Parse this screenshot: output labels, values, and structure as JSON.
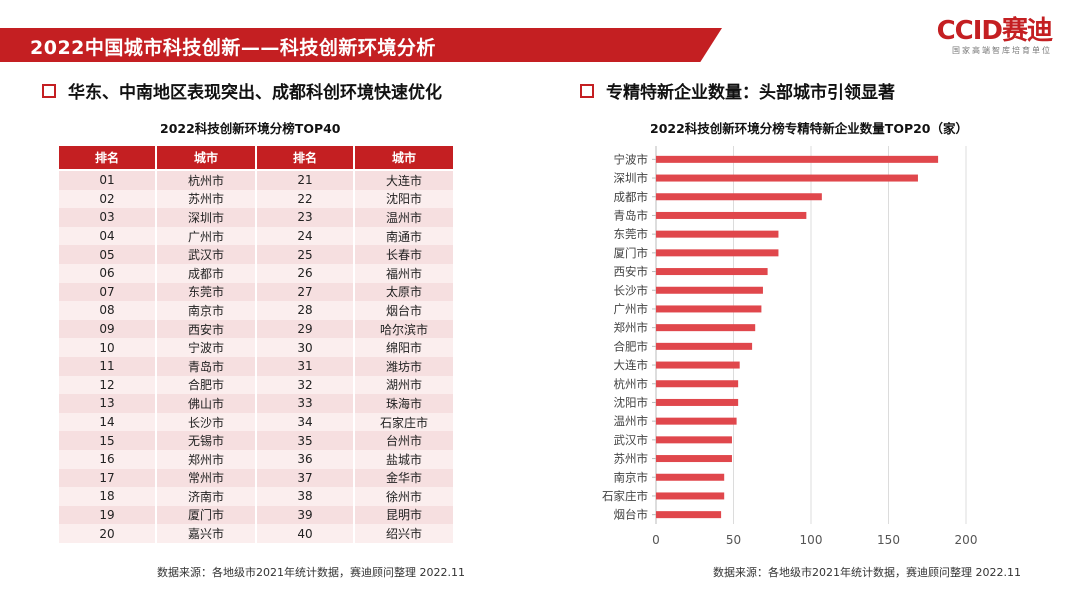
{
  "header": {
    "title": "2022中国城市科技创新——科技创新环境分析",
    "logo": "CCID赛迪",
    "logo_sub": "国家高端智库培育单位"
  },
  "left": {
    "section_title": "华东、中南地区表现突出、成都科创环境快速优化",
    "table_title": "2022科技创新环境分榜TOP40",
    "columns": [
      "排名",
      "城市",
      "排名",
      "城市"
    ],
    "rows": [
      [
        "01",
        "杭州市",
        "21",
        "大连市"
      ],
      [
        "02",
        "苏州市",
        "22",
        "沈阳市"
      ],
      [
        "03",
        "深圳市",
        "23",
        "温州市"
      ],
      [
        "04",
        "广州市",
        "24",
        "南通市"
      ],
      [
        "05",
        "武汉市",
        "25",
        "长春市"
      ],
      [
        "06",
        "成都市",
        "26",
        "福州市"
      ],
      [
        "07",
        "东莞市",
        "27",
        "太原市"
      ],
      [
        "08",
        "南京市",
        "28",
        "烟台市"
      ],
      [
        "09",
        "西安市",
        "29",
        "哈尔滨市"
      ],
      [
        "10",
        "宁波市",
        "30",
        "绵阳市"
      ],
      [
        "11",
        "青岛市",
        "31",
        "潍坊市"
      ],
      [
        "12",
        "合肥市",
        "32",
        "湖州市"
      ],
      [
        "13",
        "佛山市",
        "33",
        "珠海市"
      ],
      [
        "14",
        "长沙市",
        "34",
        "石家庄市"
      ],
      [
        "15",
        "无锡市",
        "35",
        "台州市"
      ],
      [
        "16",
        "郑州市",
        "36",
        "盐城市"
      ],
      [
        "17",
        "常州市",
        "37",
        "金华市"
      ],
      [
        "18",
        "济南市",
        "38",
        "徐州市"
      ],
      [
        "19",
        "厦门市",
        "39",
        "昆明市"
      ],
      [
        "20",
        "嘉兴市",
        "40",
        "绍兴市"
      ]
    ],
    "source": "数据来源：各地级市2021年统计数据，赛迪顾问整理 2022.11"
  },
  "right": {
    "section_title": "专精特新企业数量：头部城市引领显著",
    "source": "数据来源：各地级市2021年统计数据，赛迪顾问整理 2022.11"
  },
  "chart_data": {
    "type": "bar",
    "orientation": "horizontal",
    "title": "2022科技创新环境分榜专精特新企业数量TOP20（家）",
    "categories": [
      "宁波市",
      "深圳市",
      "成都市",
      "青岛市",
      "东莞市",
      "厦门市",
      "西安市",
      "长沙市",
      "广州市",
      "郑州市",
      "合肥市",
      "大连市",
      "杭州市",
      "沈阳市",
      "温州市",
      "武汉市",
      "苏州市",
      "南京市",
      "石家庄市",
      "烟台市"
    ],
    "values": [
      182,
      169,
      107,
      97,
      79,
      79,
      72,
      69,
      68,
      64,
      62,
      54,
      53,
      53,
      52,
      49,
      49,
      44,
      44,
      42
    ],
    "xlim": [
      0,
      200
    ],
    "xticks": [
      0,
      50,
      100,
      150,
      200
    ],
    "grid": true,
    "bar_color": "#e0474c"
  }
}
